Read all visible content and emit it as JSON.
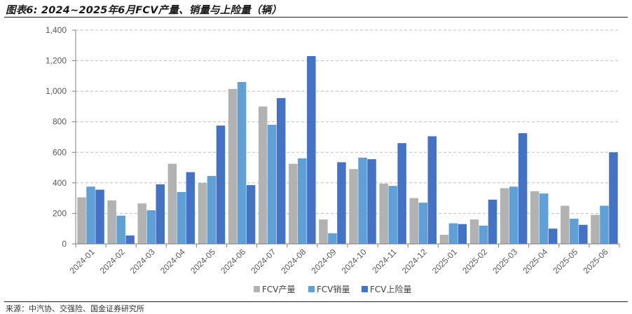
{
  "header": {
    "title": "图表6: 2024~2025年6月FCV产量、销量与上险量（辆）"
  },
  "footer": {
    "source": "来源：中汽协、交强险、国金证券研究所"
  },
  "colors": {
    "production": "#b2b2b2",
    "sales": "#5fa0d6",
    "insured": "#4472c4",
    "grid": "#bfbfbf",
    "axis": "#7f7f7f"
  },
  "chart_data": {
    "type": "bar",
    "categories": [
      "2024-01",
      "2024-02",
      "2024-03",
      "2024-04",
      "2024-05",
      "2024-06",
      "2024-07",
      "2024-08",
      "2024-09",
      "2024-10",
      "2024-11",
      "2024-12",
      "2025-01",
      "2025-02",
      "2025-03",
      "2025-04",
      "2025-05",
      "2025-06"
    ],
    "series": [
      {
        "name": "FCV产量",
        "color": "#b2b2b2",
        "values": [
          305,
          285,
          265,
          525,
          400,
          1015,
          900,
          525,
          160,
          490,
          395,
          300,
          60,
          160,
          365,
          345,
          250,
          190
        ]
      },
      {
        "name": "FCV销量",
        "color": "#5fa0d6",
        "values": [
          375,
          185,
          220,
          340,
          445,
          1060,
          780,
          560,
          70,
          565,
          380,
          270,
          135,
          120,
          375,
          330,
          165,
          250
        ]
      },
      {
        "name": "FCV上险量",
        "color": "#4472c4",
        "values": [
          355,
          55,
          390,
          470,
          775,
          385,
          955,
          1230,
          535,
          555,
          660,
          705,
          130,
          290,
          725,
          100,
          125,
          600
        ]
      }
    ],
    "ylim": [
      0,
      1400
    ],
    "yticks": [
      0,
      200,
      400,
      600,
      800,
      1000,
      1200,
      1400
    ],
    "ytick_labels": [
      "0",
      "200",
      "400",
      "600",
      "800",
      "1,000",
      "1,200",
      "1,400"
    ],
    "grid": true,
    "legend_position": "bottom",
    "xlabel": "",
    "ylabel": ""
  }
}
